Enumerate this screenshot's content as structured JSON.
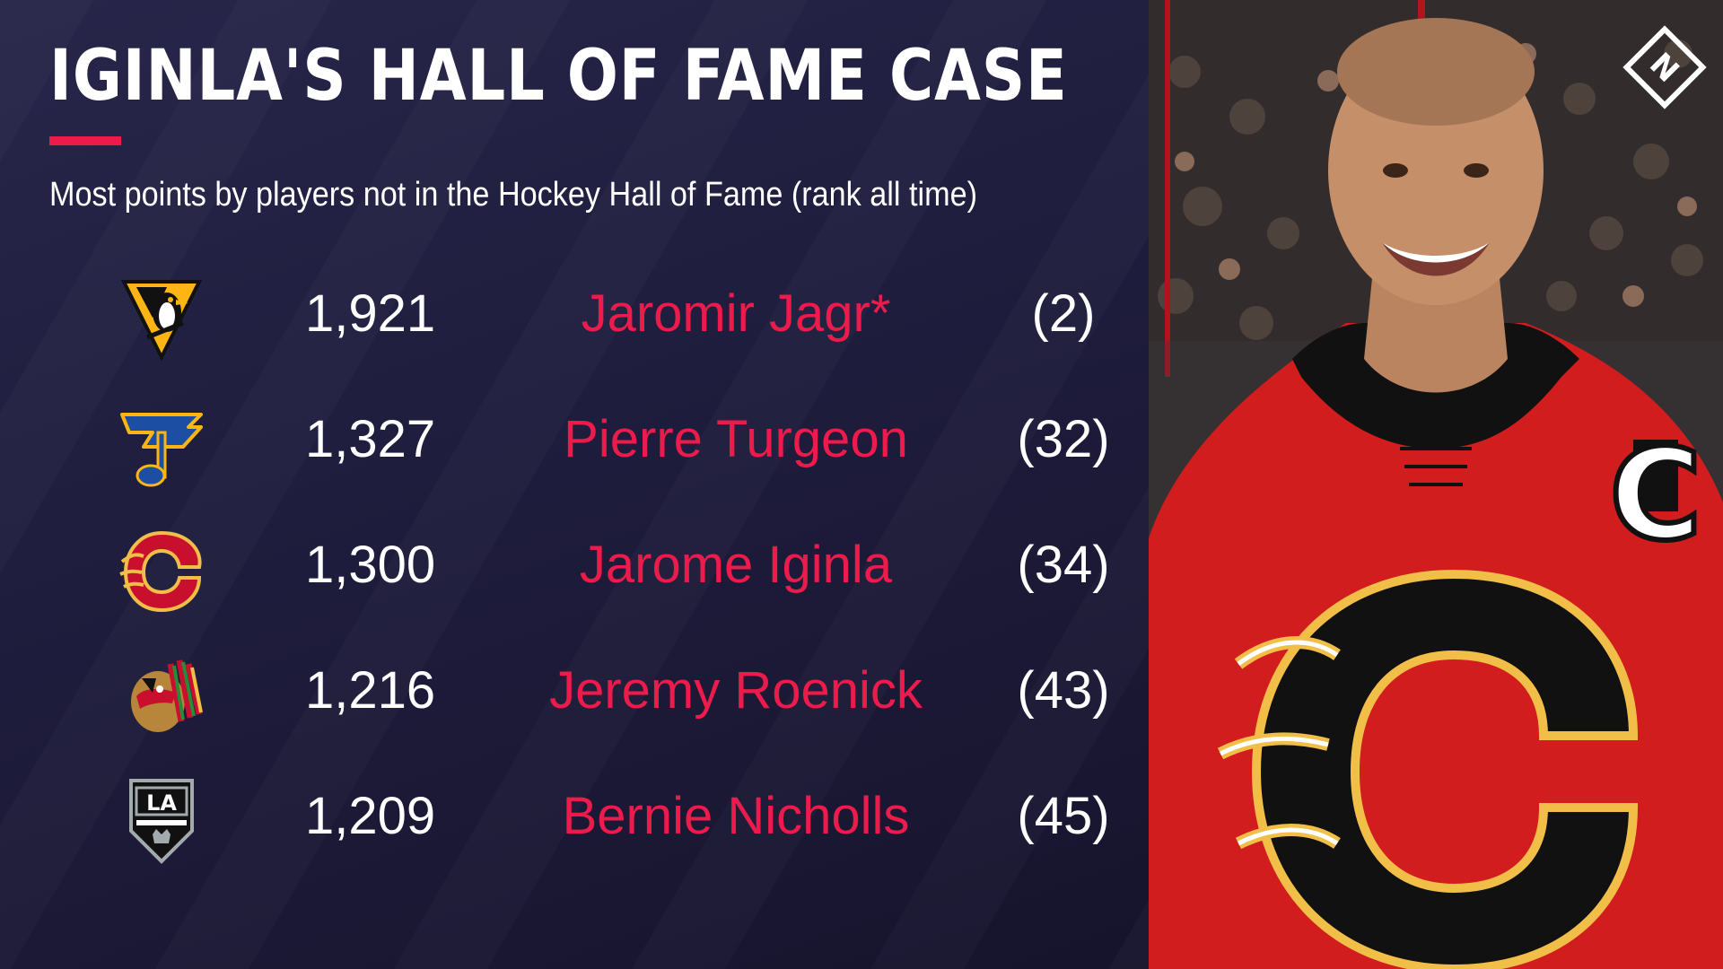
{
  "title": "IGINLA'S HALL OF FAME CASE",
  "subtitle": "Most points by players not in the Hockey Hall of Fame (rank all time)",
  "colors": {
    "accent": "#ec1b4b",
    "background": "#1f1d3d",
    "text": "#ffffff"
  },
  "rows": [
    {
      "team_logo": "pittsburgh-penguins-logo",
      "points": "1,921",
      "name": "Jaromir Jagr*",
      "rank": "(2)"
    },
    {
      "team_logo": "st-louis-blues-logo",
      "points": "1,327",
      "name": "Pierre Turgeon",
      "rank": "(32)"
    },
    {
      "team_logo": "calgary-flames-logo",
      "points": "1,300",
      "name": "Jarome Iginla",
      "rank": "(34)"
    },
    {
      "team_logo": "chicago-blackhawks-logo",
      "points": "1,216",
      "name": "Jeremy Roenick",
      "rank": "(43)"
    },
    {
      "team_logo": "los-angeles-kings-logo",
      "points": "1,209",
      "name": "Bernie Nicholls",
      "rank": "(45)"
    }
  ],
  "photo": {
    "jersey_letter": "C",
    "brand_icon": "sporting-news-logo-icon"
  }
}
